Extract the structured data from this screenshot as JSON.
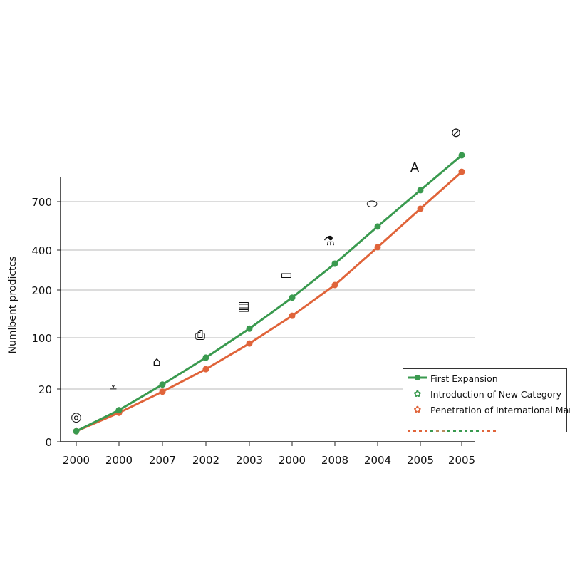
{
  "chart_data": {
    "type": "line",
    "title": "",
    "xlabel": "",
    "ylabel": "Numlbent prodictcs",
    "categories": [
      "2000",
      "2000",
      "2007",
      "2002",
      "2003",
      "2000",
      "2008",
      "2004",
      "2005",
      "2005"
    ],
    "y_ticks": [
      0,
      20,
      100,
      200,
      400,
      700
    ],
    "y_scale": "nonlinear (uneven tick spacing)",
    "ylim": [
      0,
      1000
    ],
    "grid": "horizontal",
    "legend_position": "bottom-right",
    "series": [
      {
        "name": "First Expansion",
        "color": "#3a9a4f",
        "values": [
          4,
          12,
          27,
          69,
          119,
          184,
          332,
          546,
          771,
          987
        ]
      },
      {
        "color": "#e0643a",
        "values": [
          4,
          11,
          19,
          51,
          91,
          146,
          225,
          418,
          656,
          885
        ]
      }
    ],
    "annotations": [
      "target-icon",
      "download-tray-icon",
      "house-icon",
      "camera-icon",
      "device-icon",
      "card-icon",
      "flask-icon",
      "pill-icon",
      "document-a-icon",
      "compass-icon"
    ],
    "legend": [
      {
        "label": "First Expansion",
        "marker": "line-dot",
        "color": "#3a9a4f"
      },
      {
        "label": "Introduction of New Category",
        "marker": "flower-icon",
        "color": "#3a9a4f"
      },
      {
        "label": "Penetration of International Market",
        "marker": "flower-icon",
        "color": "#e0643a"
      }
    ]
  }
}
